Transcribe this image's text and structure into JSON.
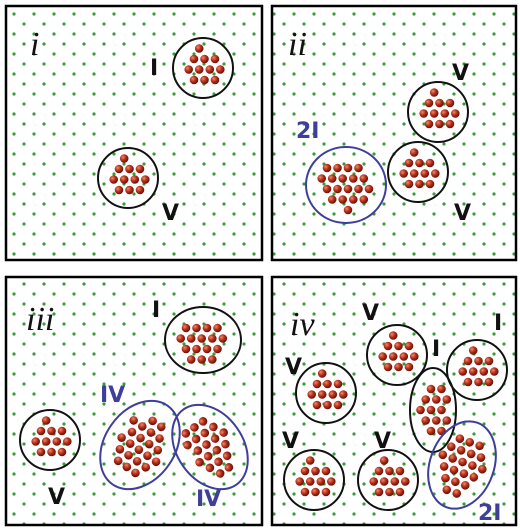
{
  "panels": [
    {
      "label": "i",
      "annotations": [
        "I",
        "V"
      ]
    },
    {
      "label": "ii",
      "annotations": [
        "V",
        "2I",
        "V"
      ]
    },
    {
      "label": "iii",
      "annotations": [
        "I",
        "IV",
        "V",
        "IV"
      ]
    },
    {
      "label": "iv",
      "annotations": [
        "V",
        "I",
        "I",
        "V",
        "V",
        "V",
        "2I"
      ]
    }
  ]
}
